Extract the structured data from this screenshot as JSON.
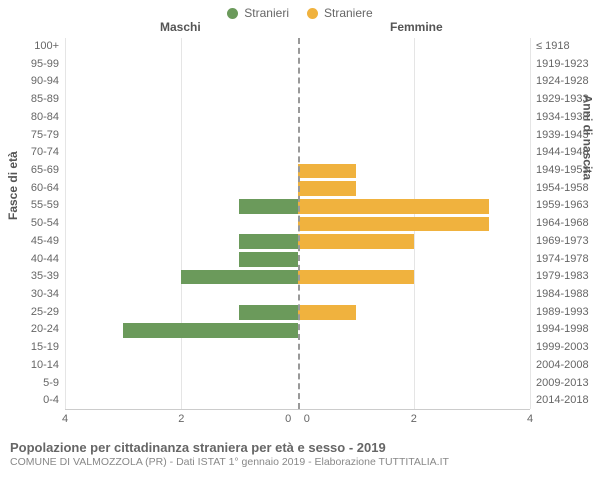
{
  "legend": {
    "male": {
      "label": "Stranieri",
      "color": "#6b9a5b"
    },
    "female": {
      "label": "Straniere",
      "color": "#f0b23e"
    }
  },
  "headers": {
    "left": "Maschi",
    "right": "Femmine"
  },
  "axis_titles": {
    "left": "Fasce di età",
    "right": "Anni di nascita"
  },
  "chart": {
    "type": "population-pyramid",
    "xmax": 4,
    "ticks": [
      4,
      2,
      0,
      0,
      2,
      4
    ],
    "background": "#ffffff",
    "grid_color": "#e5e5e5",
    "center_color": "#999999",
    "rows": [
      {
        "age": "100+",
        "birth": "≤ 1918",
        "m": 0,
        "f": 0
      },
      {
        "age": "95-99",
        "birth": "1919-1923",
        "m": 0,
        "f": 0
      },
      {
        "age": "90-94",
        "birth": "1924-1928",
        "m": 0,
        "f": 0
      },
      {
        "age": "85-89",
        "birth": "1929-1933",
        "m": 0,
        "f": 0
      },
      {
        "age": "80-84",
        "birth": "1934-1938",
        "m": 0,
        "f": 0
      },
      {
        "age": "75-79",
        "birth": "1939-1943",
        "m": 0,
        "f": 0
      },
      {
        "age": "70-74",
        "birth": "1944-1948",
        "m": 0,
        "f": 0
      },
      {
        "age": "65-69",
        "birth": "1949-1953",
        "m": 0,
        "f": 1
      },
      {
        "age": "60-64",
        "birth": "1954-1958",
        "m": 0,
        "f": 1
      },
      {
        "age": "55-59",
        "birth": "1959-1963",
        "m": 1,
        "f": 3.3
      },
      {
        "age": "50-54",
        "birth": "1964-1968",
        "m": 0,
        "f": 3.3
      },
      {
        "age": "45-49",
        "birth": "1969-1973",
        "m": 1,
        "f": 2
      },
      {
        "age": "40-44",
        "birth": "1974-1978",
        "m": 1,
        "f": 0
      },
      {
        "age": "35-39",
        "birth": "1979-1983",
        "m": 2,
        "f": 2
      },
      {
        "age": "30-34",
        "birth": "1984-1988",
        "m": 0,
        "f": 0
      },
      {
        "age": "25-29",
        "birth": "1989-1993",
        "m": 1,
        "f": 1
      },
      {
        "age": "20-24",
        "birth": "1994-1998",
        "m": 3,
        "f": 0
      },
      {
        "age": "15-19",
        "birth": "1999-2003",
        "m": 0,
        "f": 0
      },
      {
        "age": "10-14",
        "birth": "2004-2008",
        "m": 0,
        "f": 0
      },
      {
        "age": "5-9",
        "birth": "2009-2013",
        "m": 0,
        "f": 0
      },
      {
        "age": "0-4",
        "birth": "2014-2018",
        "m": 0,
        "f": 0
      }
    ]
  },
  "footer": {
    "title": "Popolazione per cittadinanza straniera per età e sesso - 2019",
    "subtitle": "COMUNE DI VALMOZZOLA (PR) - Dati ISTAT 1° gennaio 2019 - Elaborazione TUTTITALIA.IT"
  }
}
